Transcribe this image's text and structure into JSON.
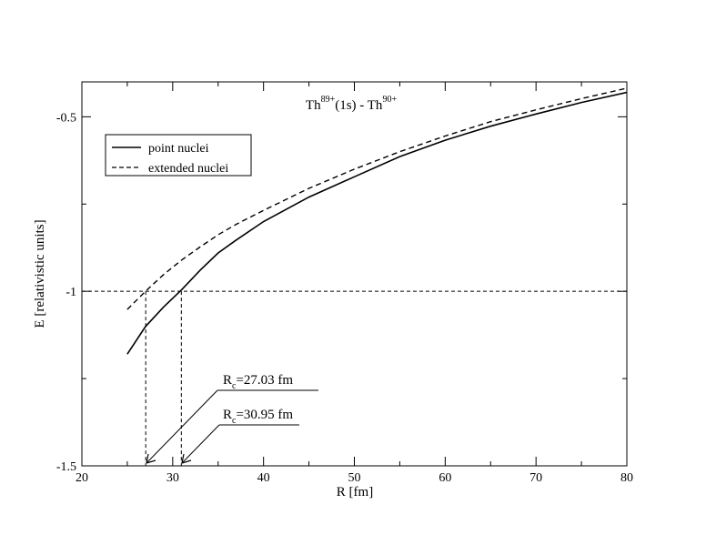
{
  "chart_data": {
    "type": "line",
    "title_parts": {
      "elem1": "Th",
      "sup1": "89+",
      "mid": "(1s) - Th",
      "sup2": "90+"
    },
    "xlabel": "R [fm]",
    "ylabel": "E [relativistic units]",
    "xlim": [
      20,
      80
    ],
    "ylim": [
      -1.5,
      -0.4
    ],
    "x_major_ticks": [
      20,
      30,
      40,
      50,
      60,
      70,
      80
    ],
    "x_tick_labels": [
      "20",
      "30",
      "40",
      "50",
      "60",
      "70",
      "80"
    ],
    "y_major_ticks": [
      -1.5,
      -1.0,
      -0.5
    ],
    "y_tick_labels": [
      "-1.5",
      "-1",
      "-0.5"
    ],
    "grid": false,
    "legend_position": "top-left",
    "series": [
      {
        "name": "point nuclei",
        "style": "solid",
        "x": [
          25,
          27,
          29,
          31,
          33,
          35,
          37,
          40,
          45,
          50,
          55,
          60,
          65,
          70,
          75,
          80
        ],
        "y": [
          -1.18,
          -1.101,
          -1.045,
          -0.995,
          -0.94,
          -0.89,
          -0.853,
          -0.8,
          -0.73,
          -0.672,
          -0.614,
          -0.567,
          -0.527,
          -0.492,
          -0.459,
          -0.43
        ]
      },
      {
        "name": "extended nuclei",
        "style": "dashed",
        "x": [
          25,
          27,
          29,
          31,
          33,
          35,
          37,
          40,
          45,
          50,
          55,
          60,
          65,
          70,
          75,
          80
        ],
        "y": [
          -1.052,
          -1.0,
          -0.952,
          -0.91,
          -0.873,
          -0.838,
          -0.808,
          -0.768,
          -0.705,
          -0.65,
          -0.6,
          -0.555,
          -0.514,
          -0.48,
          -0.448,
          -0.418
        ]
      }
    ],
    "reference_line": {
      "y": -1.0,
      "style": "dashed"
    },
    "annotations": [
      {
        "prefix": "R",
        "sub": "c",
        "text": "=27.03 fm",
        "x": 27.03
      },
      {
        "prefix": "R",
        "sub": "c",
        "text": "=30.95 fm",
        "x": 30.95
      }
    ]
  }
}
